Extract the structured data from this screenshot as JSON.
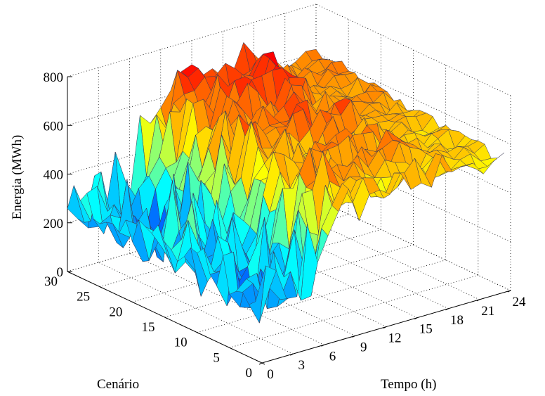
{
  "chart_data": {
    "type": "surface",
    "title": "",
    "xlabel": "Tempo (h)",
    "ylabel": "Cenário",
    "zlabel": "Energia (MWh)",
    "xlim": [
      0,
      24
    ],
    "ylim": [
      0,
      30
    ],
    "zlim": [
      0,
      800
    ],
    "xticks": [
      "0",
      "3",
      "6",
      "9",
      "12",
      "15",
      "18",
      "21",
      "24"
    ],
    "yticks": [
      "0",
      "5",
      "10",
      "15",
      "20",
      "25",
      "30"
    ],
    "zticks": [
      "0",
      "200",
      "400",
      "600",
      "800"
    ],
    "grid": true,
    "colormap": "jet",
    "edge_color": "#3a3a55",
    "z_low_hours": [
      0,
      1,
      2,
      3,
      4,
      5,
      6
    ],
    "z_high_hours": [
      9,
      10,
      11,
      12,
      13,
      14,
      15,
      16,
      17,
      18,
      19,
      20,
      21,
      22,
      23,
      24
    ],
    "note_values": "Surface heights approximate: ~100-250 MWh for hours 0-6, ~450-750 MWh for hours 9-24"
  }
}
